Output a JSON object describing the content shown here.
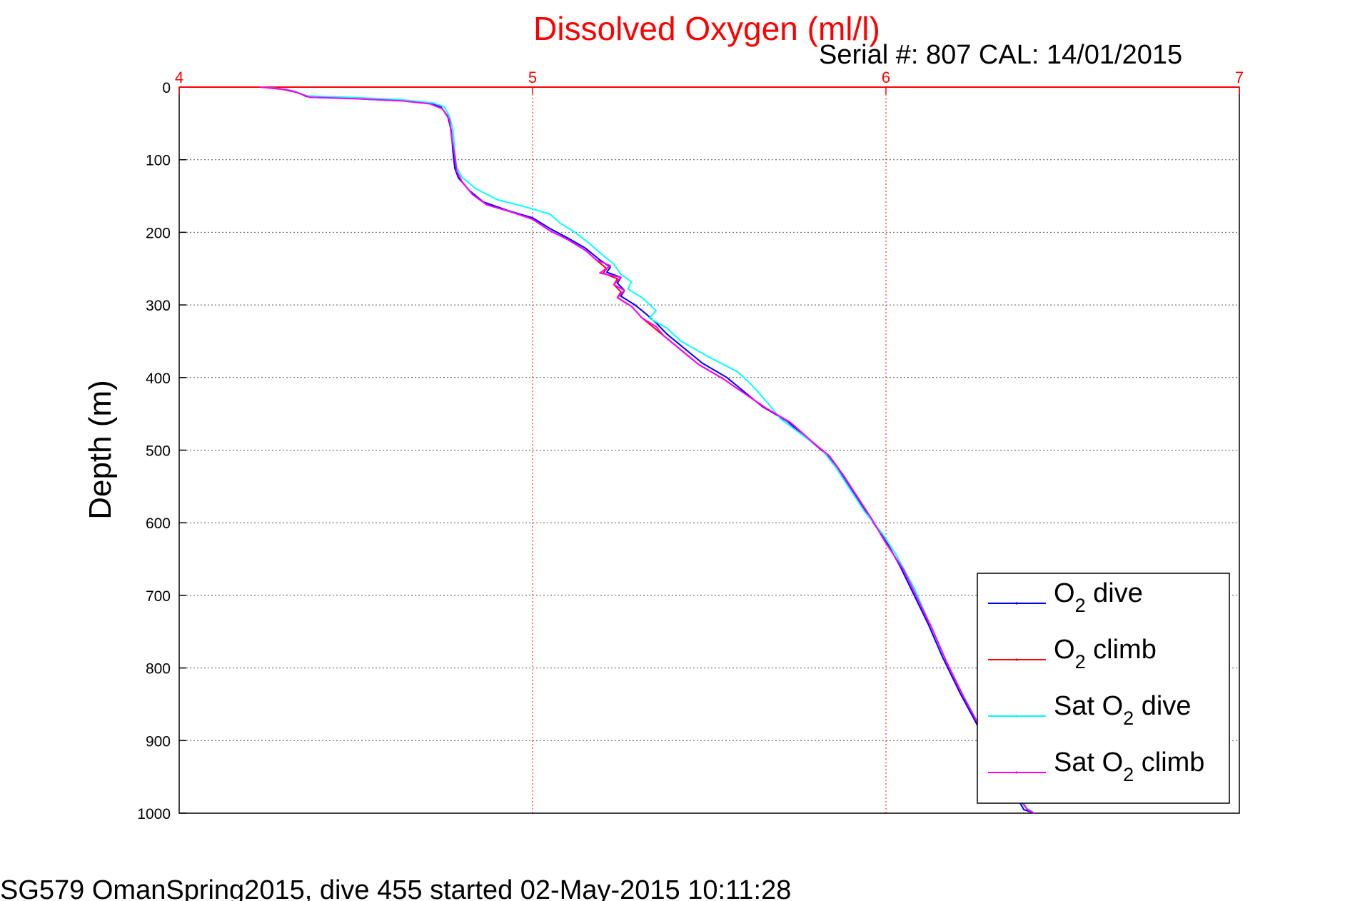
{
  "chart_data": {
    "type": "line",
    "title": "Dissolved Oxygen (ml/l)",
    "subtitle": "Serial #: 807  CAL: 14/01/2015",
    "ylabel": "Depth (m)",
    "footer": "SG579 OmanSpring2015, dive 455 started 02-May-2015 10:11:28",
    "xlim": [
      4,
      7
    ],
    "ylim": [
      0,
      1000
    ],
    "y_reversed": true,
    "x_axis_position": "top",
    "x_ticks": [
      "4",
      "5",
      "6",
      "7"
    ],
    "y_ticks": [
      "0",
      "100",
      "200",
      "300",
      "400",
      "500",
      "600",
      "700",
      "800",
      "900",
      "1000"
    ],
    "grid": true,
    "legend_position": "bottom-right",
    "series": [
      {
        "name": "O2 dive",
        "label_main": "O",
        "label_sub": "2",
        "label_rest": " dive",
        "color": "#0000ff",
        "points": [
          [
            4.23,
            0
          ],
          [
            4.28,
            2
          ],
          [
            4.33,
            6
          ],
          [
            4.36,
            13
          ],
          [
            4.48,
            15
          ],
          [
            4.62,
            18
          ],
          [
            4.71,
            22
          ],
          [
            4.74,
            27
          ],
          [
            4.76,
            40
          ],
          [
            4.77,
            60
          ],
          [
            4.775,
            90
          ],
          [
            4.78,
            112
          ],
          [
            4.79,
            125
          ],
          [
            4.82,
            142
          ],
          [
            4.86,
            158
          ],
          [
            4.93,
            170
          ],
          [
            5.0,
            180
          ],
          [
            5.05,
            195
          ],
          [
            5.1,
            208
          ],
          [
            5.15,
            222
          ],
          [
            5.19,
            238
          ],
          [
            5.22,
            248
          ],
          [
            5.21,
            255
          ],
          [
            5.25,
            262
          ],
          [
            5.24,
            270
          ],
          [
            5.26,
            280
          ],
          [
            5.25,
            288
          ],
          [
            5.29,
            300
          ],
          [
            5.32,
            312
          ],
          [
            5.35,
            325
          ],
          [
            5.38,
            340
          ],
          [
            5.43,
            360
          ],
          [
            5.48,
            380
          ],
          [
            5.55,
            400
          ],
          [
            5.6,
            420
          ],
          [
            5.65,
            440
          ],
          [
            5.72,
            460
          ],
          [
            5.78,
            485
          ],
          [
            5.83,
            505
          ],
          [
            5.87,
            530
          ],
          [
            5.91,
            560
          ],
          [
            5.95,
            590
          ],
          [
            6.0,
            625
          ],
          [
            6.04,
            660
          ],
          [
            6.08,
            700
          ],
          [
            6.12,
            740
          ],
          [
            6.16,
            785
          ],
          [
            6.21,
            835
          ],
          [
            6.26,
            880
          ],
          [
            6.3,
            920
          ],
          [
            6.35,
            960
          ],
          [
            6.39,
            995
          ],
          [
            6.42,
            1000
          ]
        ]
      },
      {
        "name": "O2 climb",
        "label_main": "O",
        "label_sub": "2",
        "label_rest": " climb",
        "color": "#ff0000",
        "points": [
          [
            4.23,
            0
          ],
          [
            4.29,
            3
          ],
          [
            4.33,
            7
          ],
          [
            4.37,
            14
          ],
          [
            4.5,
            16
          ],
          [
            4.63,
            19
          ],
          [
            4.71,
            23
          ],
          [
            4.745,
            30
          ],
          [
            4.765,
            45
          ],
          [
            4.77,
            65
          ],
          [
            4.78,
            95
          ],
          [
            4.785,
            115
          ],
          [
            4.8,
            130
          ],
          [
            4.83,
            148
          ],
          [
            4.87,
            162
          ],
          [
            4.94,
            172
          ],
          [
            5.0,
            182
          ],
          [
            5.05,
            198
          ],
          [
            5.1,
            210
          ],
          [
            5.15,
            225
          ],
          [
            5.18,
            238
          ],
          [
            5.21,
            250
          ],
          [
            5.2,
            256
          ],
          [
            5.24,
            264
          ],
          [
            5.23,
            272
          ],
          [
            5.25,
            282
          ],
          [
            5.24,
            290
          ],
          [
            5.28,
            302
          ],
          [
            5.31,
            318
          ],
          [
            5.34,
            330
          ],
          [
            5.37,
            342
          ],
          [
            5.42,
            362
          ],
          [
            5.47,
            382
          ],
          [
            5.54,
            402
          ],
          [
            5.6,
            422
          ],
          [
            5.66,
            442
          ],
          [
            5.73,
            462
          ],
          [
            5.79,
            488
          ],
          [
            5.84,
            508
          ],
          [
            5.88,
            535
          ],
          [
            5.92,
            565
          ],
          [
            5.96,
            595
          ],
          [
            6.0,
            628
          ],
          [
            6.05,
            665
          ],
          [
            6.09,
            705
          ],
          [
            6.13,
            745
          ],
          [
            6.17,
            790
          ],
          [
            6.22,
            840
          ],
          [
            6.27,
            885
          ],
          [
            6.31,
            925
          ],
          [
            6.36,
            965
          ],
          [
            6.4,
            995
          ],
          [
            6.42,
            1000
          ]
        ]
      },
      {
        "name": "Sat O2 dive",
        "label_main": "Sat O",
        "label_sub": "2",
        "label_rest": " dive",
        "color": "#00ffff",
        "points": [
          [
            4.23,
            0
          ],
          [
            4.28,
            2
          ],
          [
            4.33,
            6
          ],
          [
            4.36,
            12
          ],
          [
            4.48,
            14
          ],
          [
            4.62,
            17
          ],
          [
            4.72,
            22
          ],
          [
            4.75,
            27
          ],
          [
            4.765,
            40
          ],
          [
            4.775,
            60
          ],
          [
            4.78,
            90
          ],
          [
            4.785,
            110
          ],
          [
            4.8,
            124
          ],
          [
            4.84,
            140
          ],
          [
            4.9,
            155
          ],
          [
            4.98,
            165
          ],
          [
            5.05,
            175
          ],
          [
            5.08,
            188
          ],
          [
            5.12,
            200
          ],
          [
            5.16,
            215
          ],
          [
            5.2,
            232
          ],
          [
            5.23,
            244
          ],
          [
            5.25,
            258
          ],
          [
            5.28,
            268
          ],
          [
            5.27,
            278
          ],
          [
            5.31,
            290
          ],
          [
            5.35,
            308
          ],
          [
            5.33,
            318
          ],
          [
            5.38,
            332
          ],
          [
            5.42,
            350
          ],
          [
            5.5,
            372
          ],
          [
            5.58,
            392
          ],
          [
            5.62,
            410
          ],
          [
            5.66,
            432
          ],
          [
            5.7,
            456
          ],
          [
            5.76,
            478
          ],
          [
            5.82,
            500
          ],
          [
            5.86,
            525
          ],
          [
            5.9,
            555
          ],
          [
            5.94,
            585
          ],
          [
            5.99,
            615
          ],
          [
            6.03,
            645
          ],
          [
            6.08,
            690
          ],
          [
            6.12,
            735
          ],
          [
            6.16,
            780
          ],
          [
            6.21,
            830
          ],
          [
            6.26,
            875
          ],
          [
            6.3,
            915
          ],
          [
            6.35,
            955
          ],
          [
            6.39,
            990
          ],
          [
            6.42,
            1000
          ]
        ]
      },
      {
        "name": "Sat O2 climb",
        "label_main": "Sat O",
        "label_sub": "2",
        "label_rest": " climb",
        "color": "#ff00ff",
        "points": [
          [
            4.23,
            0
          ],
          [
            4.3,
            3
          ],
          [
            4.33,
            7
          ],
          [
            4.37,
            14
          ],
          [
            4.5,
            16
          ],
          [
            4.63,
            19
          ],
          [
            4.71,
            23
          ],
          [
            4.745,
            30
          ],
          [
            4.765,
            45
          ],
          [
            4.77,
            65
          ],
          [
            4.78,
            95
          ],
          [
            4.785,
            115
          ],
          [
            4.8,
            130
          ],
          [
            4.83,
            148
          ],
          [
            4.87,
            162
          ],
          [
            4.94,
            172
          ],
          [
            5.0,
            182
          ],
          [
            5.05,
            198
          ],
          [
            5.1,
            210
          ],
          [
            5.15,
            225
          ],
          [
            5.18,
            238
          ],
          [
            5.22,
            246
          ],
          [
            5.19,
            256
          ],
          [
            5.25,
            262
          ],
          [
            5.23,
            272
          ],
          [
            5.26,
            280
          ],
          [
            5.24,
            290
          ],
          [
            5.28,
            302
          ],
          [
            5.31,
            318
          ],
          [
            5.35,
            330
          ],
          [
            5.37,
            342
          ],
          [
            5.42,
            362
          ],
          [
            5.47,
            382
          ],
          [
            5.54,
            402
          ],
          [
            5.6,
            422
          ],
          [
            5.66,
            442
          ],
          [
            5.73,
            462
          ],
          [
            5.79,
            488
          ],
          [
            5.84,
            508
          ],
          [
            5.88,
            535
          ],
          [
            5.92,
            565
          ],
          [
            5.96,
            595
          ],
          [
            6.0,
            628
          ],
          [
            6.05,
            665
          ],
          [
            6.09,
            705
          ],
          [
            6.13,
            745
          ],
          [
            6.17,
            790
          ],
          [
            6.22,
            840
          ],
          [
            6.27,
            885
          ],
          [
            6.31,
            925
          ],
          [
            6.36,
            965
          ],
          [
            6.4,
            995
          ],
          [
            6.42,
            1000
          ]
        ]
      }
    ]
  }
}
